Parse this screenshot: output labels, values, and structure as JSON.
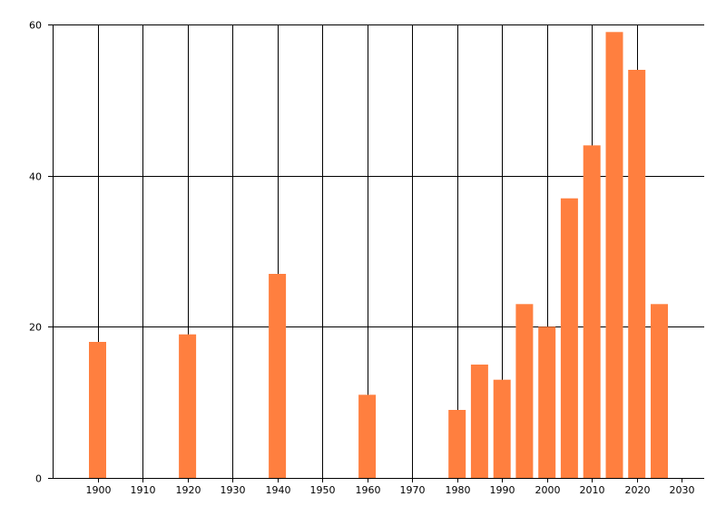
{
  "chart_data": {
    "type": "bar",
    "title": "",
    "xlabel": "",
    "ylabel": "",
    "x": [
      1900,
      1920,
      1940,
      1960,
      1980,
      1985,
      1990,
      1995,
      2000,
      2005,
      2010,
      2015,
      2020,
      2025
    ],
    "values": [
      18,
      19,
      27,
      11,
      9,
      15,
      13,
      23,
      20,
      37,
      44,
      59,
      54,
      23
    ],
    "xlim": [
      1890,
      2035
    ],
    "ylim": [
      0,
      60
    ],
    "xticks": [
      1900,
      1910,
      1920,
      1930,
      1940,
      1950,
      1960,
      1970,
      1980,
      1990,
      2000,
      2010,
      2020,
      2030
    ],
    "xtick_labels": [
      "1900",
      "1910",
      "1920",
      "1930",
      "1940",
      "1950",
      "1960",
      "1970",
      "1980",
      "1990",
      "2000",
      "2010",
      "2020",
      "2030"
    ],
    "yticks": [
      0,
      20,
      40,
      60
    ],
    "ytick_labels": [
      "0",
      "20",
      "40",
      "60"
    ],
    "grid": true,
    "bar_color": "#FF7F3F",
    "axis_color": "#000000"
  }
}
